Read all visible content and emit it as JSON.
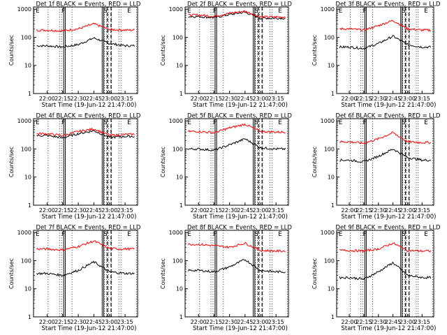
{
  "figure": {
    "xlabel": "Start Time (19-Jun-12 21:47:00)",
    "ylabel": "Counts/sec",
    "x_ticks": [
      "22:00",
      "22:15",
      "22:30",
      "22:45",
      "23:00",
      "23:15"
    ],
    "y_ticks": [
      "1",
      "10",
      "100",
      "1000"
    ],
    "ylim": [
      1,
      1200
    ],
    "y_scale": "log",
    "colors": {
      "events": "#000000",
      "lld": "#ff0000"
    },
    "marker_labels": [
      "E",
      "F",
      "S",
      "E"
    ],
    "grid": false
  },
  "chart_data": [
    {
      "type": "line",
      "title": "Det 1f BLACK = Events, RED = LLD",
      "x": [
        "22:00",
        "22:15",
        "22:30",
        "22:45",
        "23:00",
        "23:15"
      ],
      "series": [
        {
          "name": "Events",
          "values": [
            50,
            45,
            55,
            95,
            60,
            50
          ]
        },
        {
          "name": "LLD",
          "values": [
            180,
            170,
            200,
            300,
            190,
            180
          ]
        }
      ]
    },
    {
      "type": "line",
      "title": "Det 2f BLACK = Events, RED = LLD",
      "x": [
        "22:00",
        "22:15",
        "22:30",
        "22:45",
        "23:00",
        "23:15"
      ],
      "series": [
        {
          "name": "Events",
          "values": [
            550,
            500,
            650,
            780,
            480,
            480
          ]
        },
        {
          "name": "LLD",
          "values": [
            620,
            560,
            720,
            850,
            530,
            530
          ]
        }
      ]
    },
    {
      "type": "line",
      "title": "Det 3f BLACK = Events, RED = LLD",
      "x": [
        "22:00",
        "22:15",
        "22:30",
        "22:45",
        "23:00",
        "23:15"
      ],
      "series": [
        {
          "name": "Events",
          "values": [
            45,
            40,
            60,
            110,
            55,
            45
          ]
        },
        {
          "name": "LLD",
          "values": [
            200,
            180,
            260,
            400,
            200,
            180
          ]
        }
      ]
    },
    {
      "type": "line",
      "title": "Det 4f BLACK = Events, RED = LLD",
      "x": [
        "22:00",
        "22:15",
        "22:30",
        "22:45",
        "23:00",
        "23:15"
      ],
      "series": [
        {
          "name": "Events",
          "values": [
            300,
            250,
            350,
            450,
            260,
            280
          ]
        },
        {
          "name": "LLD",
          "values": [
            350,
            300,
            420,
            520,
            300,
            330
          ]
        }
      ]
    },
    {
      "type": "line",
      "title": "Det 5f BLACK = Events, RED = LLD",
      "x": [
        "22:00",
        "22:15",
        "22:30",
        "22:45",
        "23:00",
        "23:15"
      ],
      "series": [
        {
          "name": "Events",
          "values": [
            100,
            90,
            140,
            230,
            110,
            100
          ]
        },
        {
          "name": "LLD",
          "values": [
            420,
            380,
            560,
            760,
            420,
            400
          ]
        }
      ]
    },
    {
      "type": "line",
      "title": "Det 6f BLACK = Events, RED = LLD",
      "x": [
        "22:00",
        "22:15",
        "22:30",
        "22:45",
        "23:00",
        "23:15"
      ],
      "series": [
        {
          "name": "Events",
          "values": [
            40,
            35,
            55,
            100,
            50,
            40
          ]
        },
        {
          "name": "LLD",
          "values": [
            180,
            160,
            230,
            380,
            180,
            170
          ]
        }
      ]
    },
    {
      "type": "line",
      "title": "Det 7f BLACK = Events, RED = LLD",
      "x": [
        "22:00",
        "22:15",
        "22:30",
        "22:45",
        "23:00",
        "23:15"
      ],
      "series": [
        {
          "name": "Events",
          "values": [
            35,
            30,
            45,
            90,
            40,
            35
          ]
        },
        {
          "name": "LLD",
          "values": [
            260,
            240,
            320,
            500,
            270,
            260
          ]
        }
      ]
    },
    {
      "type": "line",
      "title": "Det 8f BLACK = Events, RED = LLD",
      "x": [
        "22:00",
        "22:15",
        "22:30",
        "22:45",
        "23:00",
        "23:15"
      ],
      "series": [
        {
          "name": "Events",
          "values": [
            45,
            40,
            60,
            110,
            45,
            40
          ]
        },
        {
          "name": "LLD",
          "values": [
            380,
            340,
            300,
            420,
            230,
            220
          ]
        }
      ]
    },
    {
      "type": "line",
      "title": "Det 9f BLACK = Events, RED = LLD",
      "x": [
        "22:00",
        "22:15",
        "22:30",
        "22:45",
        "23:00",
        "23:15"
      ],
      "series": [
        {
          "name": "Events",
          "values": [
            25,
            22,
            40,
            85,
            30,
            25
          ]
        },
        {
          "name": "LLD",
          "values": [
            230,
            220,
            260,
            420,
            230,
            220
          ]
        }
      ]
    }
  ]
}
